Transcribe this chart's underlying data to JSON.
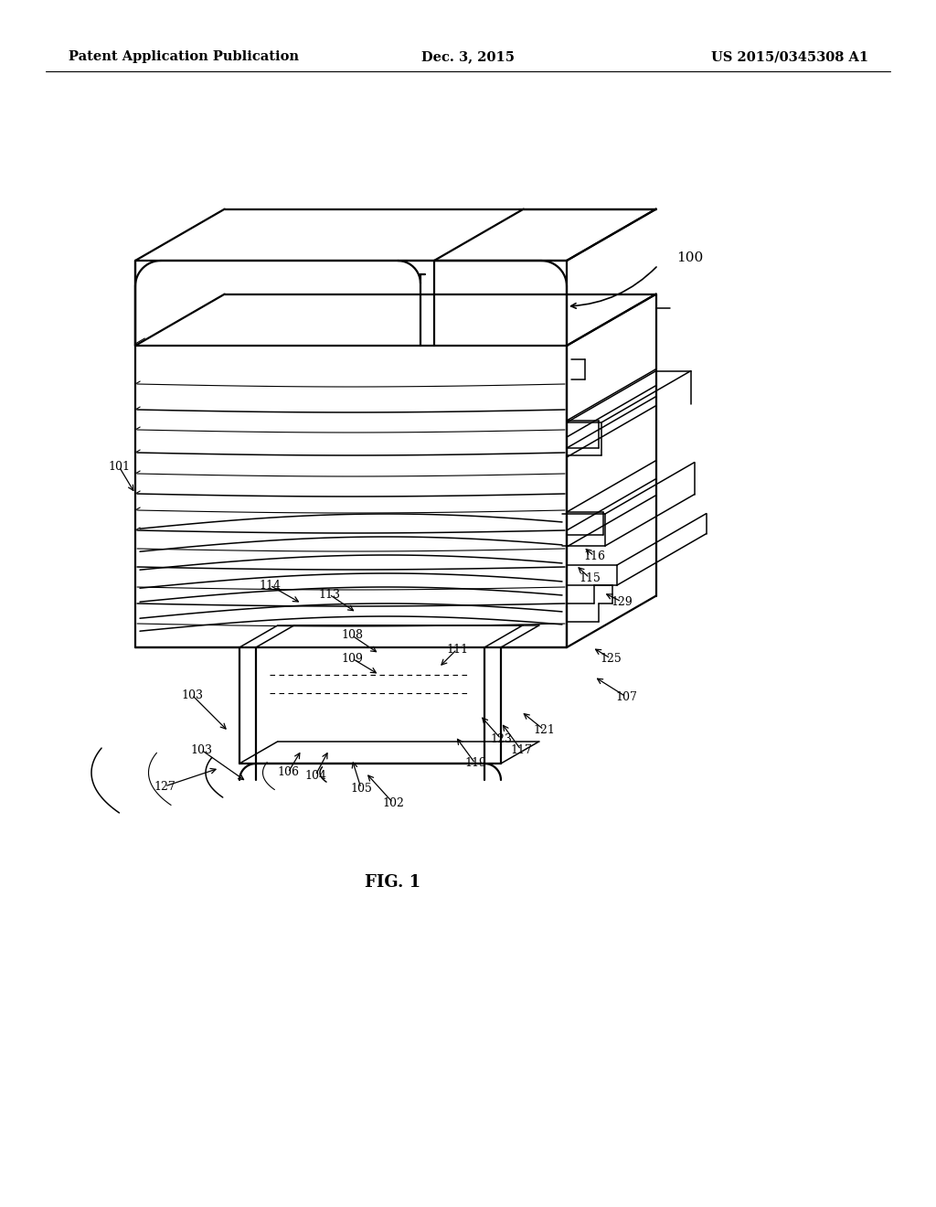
{
  "background_color": "#ffffff",
  "header_left": "Patent Application Publication",
  "header_center": "Dec. 3, 2015",
  "header_right": "US 2015/0345308 A1",
  "fig_label": "FIG. 1",
  "header_fontsize": 10.5,
  "label_fontsize": 10,
  "fig_label_fontsize": 13,
  "lw_main": 1.6,
  "lw_med": 1.1,
  "lw_thin": 0.8
}
